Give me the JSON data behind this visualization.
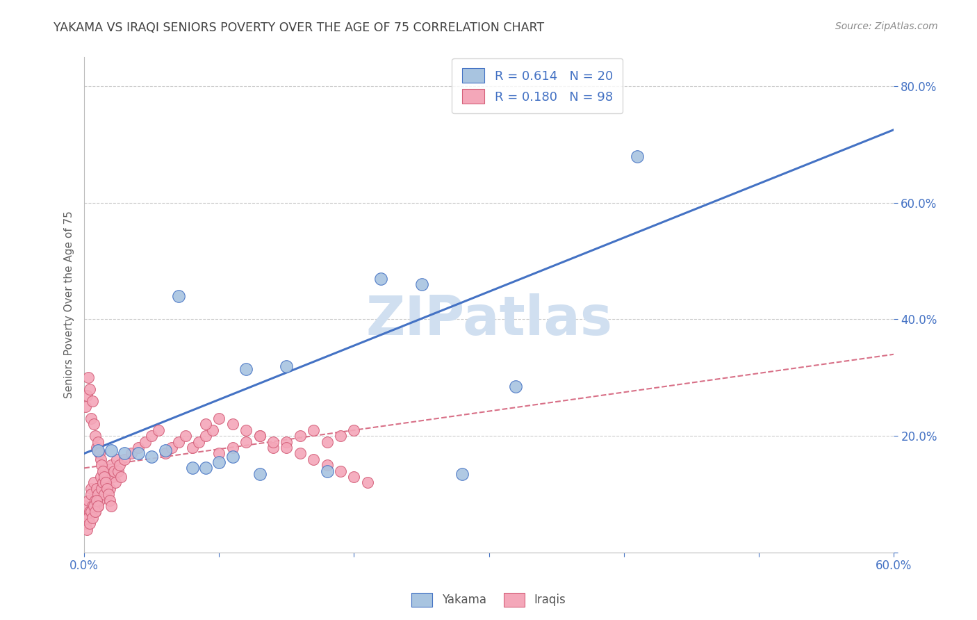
{
  "title": "YAKAMA VS IRAQI SENIORS POVERTY OVER THE AGE OF 75 CORRELATION CHART",
  "source_text": "Source: ZipAtlas.com",
  "ylabel": "Seniors Poverty Over the Age of 75",
  "xlim": [
    0.0,
    0.6
  ],
  "ylim": [
    0.0,
    0.85
  ],
  "legend_r_yakama": "0.614",
  "legend_n_yakama": "20",
  "legend_r_iraqis": "0.180",
  "legend_n_iraqis": "98",
  "yakama_color": "#a8c4e0",
  "yakama_line_color": "#4472c4",
  "iraqis_color": "#f4a7b9",
  "iraqis_line_color": "#d4607a",
  "watermark": "ZIPatlas",
  "watermark_color": "#d0dff0",
  "background_color": "#ffffff",
  "grid_color": "#cccccc",
  "title_color": "#404040",
  "axis_label_color": "#606060",
  "tick_color": "#4472c4",
  "yakama_line_x0": 0.0,
  "yakama_line_y0": 0.17,
  "yakama_line_x1": 0.6,
  "yakama_line_y1": 0.725,
  "iraqis_line_x0": 0.0,
  "iraqis_line_y0": 0.145,
  "iraqis_line_x1": 0.6,
  "iraqis_line_y1": 0.34,
  "yakama_x": [
    0.01,
    0.02,
    0.03,
    0.04,
    0.05,
    0.06,
    0.07,
    0.08,
    0.09,
    0.1,
    0.11,
    0.12,
    0.13,
    0.15,
    0.18,
    0.22,
    0.25,
    0.28,
    0.32,
    0.41
  ],
  "yakama_y": [
    0.175,
    0.175,
    0.17,
    0.17,
    0.165,
    0.175,
    0.44,
    0.145,
    0.145,
    0.155,
    0.165,
    0.315,
    0.135,
    0.32,
    0.14,
    0.47,
    0.46,
    0.135,
    0.285,
    0.68
  ],
  "iraqis_x": [
    0.001,
    0.002,
    0.003,
    0.004,
    0.005,
    0.005,
    0.006,
    0.007,
    0.008,
    0.008,
    0.009,
    0.01,
    0.01,
    0.011,
    0.012,
    0.013,
    0.014,
    0.015,
    0.016,
    0.017,
    0.018,
    0.019,
    0.02,
    0.021,
    0.022,
    0.023,
    0.024,
    0.025,
    0.026,
    0.027,
    0.001,
    0.002,
    0.003,
    0.004,
    0.005,
    0.006,
    0.007,
    0.008,
    0.009,
    0.01,
    0.011,
    0.012,
    0.013,
    0.014,
    0.015,
    0.016,
    0.017,
    0.018,
    0.019,
    0.02,
    0.001,
    0.002,
    0.003,
    0.004,
    0.005,
    0.006,
    0.007,
    0.008,
    0.009,
    0.01,
    0.03,
    0.035,
    0.04,
    0.045,
    0.05,
    0.055,
    0.06,
    0.065,
    0.07,
    0.075,
    0.08,
    0.085,
    0.09,
    0.095,
    0.1,
    0.11,
    0.12,
    0.13,
    0.14,
    0.15,
    0.16,
    0.17,
    0.18,
    0.19,
    0.2,
    0.09,
    0.1,
    0.11,
    0.12,
    0.13,
    0.14,
    0.15,
    0.16,
    0.17,
    0.18,
    0.19,
    0.2,
    0.21
  ],
  "iraqis_y": [
    0.08,
    0.06,
    0.09,
    0.07,
    0.11,
    0.1,
    0.08,
    0.12,
    0.07,
    0.09,
    0.11,
    0.08,
    0.1,
    0.09,
    0.13,
    0.11,
    0.12,
    0.1,
    0.14,
    0.12,
    0.13,
    0.11,
    0.15,
    0.13,
    0.14,
    0.12,
    0.16,
    0.14,
    0.15,
    0.13,
    0.25,
    0.27,
    0.3,
    0.28,
    0.23,
    0.26,
    0.22,
    0.2,
    0.18,
    0.19,
    0.17,
    0.16,
    0.15,
    0.14,
    0.13,
    0.12,
    0.11,
    0.1,
    0.09,
    0.08,
    0.05,
    0.04,
    0.06,
    0.05,
    0.07,
    0.06,
    0.08,
    0.07,
    0.09,
    0.08,
    0.16,
    0.17,
    0.18,
    0.19,
    0.2,
    0.21,
    0.17,
    0.18,
    0.19,
    0.2,
    0.18,
    0.19,
    0.2,
    0.21,
    0.17,
    0.18,
    0.19,
    0.2,
    0.18,
    0.19,
    0.2,
    0.21,
    0.19,
    0.2,
    0.21,
    0.22,
    0.23,
    0.22,
    0.21,
    0.2,
    0.19,
    0.18,
    0.17,
    0.16,
    0.15,
    0.14,
    0.13,
    0.12
  ]
}
